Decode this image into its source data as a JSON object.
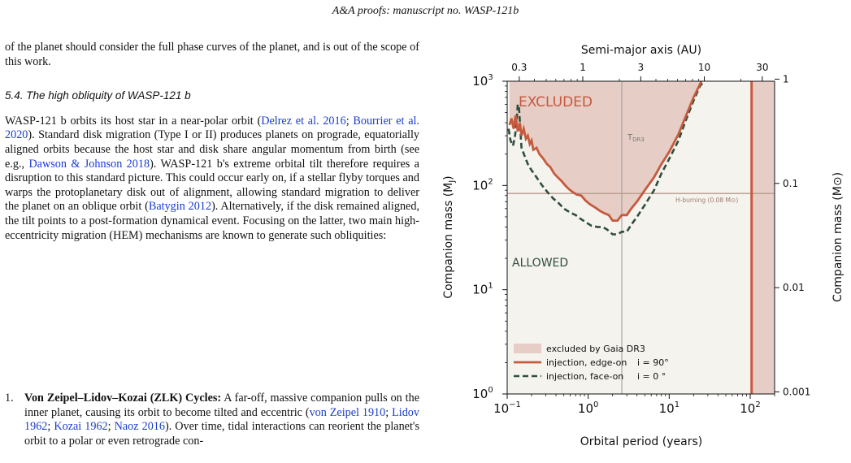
{
  "header": {
    "journal": "A&A proofs:",
    "rest": "manuscript no. WASP-121b"
  },
  "para1": "of the planet should consider the full phase curves of the planet, and is out of the scope of this work.",
  "section_title": "5.4. The high obliquity of WASP-121 b",
  "para2": {
    "t1": "WASP-121 b orbits its host star in a near-polar orbit (",
    "c1": "Delrez et al. 2016",
    "t2": "; ",
    "c2": "Bourrier et al. 2020",
    "t3": "). Standard disk migration (Type I or II) produces planets on prograde, equatorially aligned orbits because the host star and disk share angular momentum from birth (see e.g., ",
    "c3": "Dawson & Johnson 2018",
    "t4": "). WASP-121 b's extreme orbital tilt therefore requires a disruption to this standard picture. This could occur early on, if a stellar flyby torques and warps the protoplanetary disk out of alignment, allowing standard migration to deliver the planet on an oblique orbit (",
    "c4": "Batygin 2012",
    "t5": "). Alternatively, if the disk remained aligned, the tilt points to a post-formation dynamical event. Focusing on the latter, two main high-eccentricity migration (HEM) mechanisms are known to generate such obliquities:"
  },
  "list_item": {
    "num": "1.",
    "bold": "Von Zeipel–Lidov–Kozai (ZLK) Cycles:",
    "t1": " A far-off, massive companion pulls on the inner planet, causing its orbit to become tilted and eccentric (",
    "c1": "von Zeipel 1910",
    "t2": "; ",
    "c2": "Lidov 1962",
    "t3": "; ",
    "c3": "Kozai 1962",
    "t4": "; ",
    "c4": "Naoz 2016",
    "t5": "). Over time, tidal interactions can reorient the planet's orbit to a polar or even retrograde con-"
  },
  "chart_data": {
    "type": "line",
    "top_axis_label": "Semi-major axis (AU)",
    "top_ticks": [
      "0.3",
      "1",
      "3",
      "10",
      "30"
    ],
    "top_tick_values_au": [
      0.3,
      1,
      3,
      10,
      30
    ],
    "xlabel": "Orbital period (years)",
    "ylabel": "Companion mass (M",
    "ylabel_sub": "J",
    "ylabel_right": "Companion mass (M",
    "ylabel_right_sym": "⊙",
    "x_scale": "log",
    "y_scale": "log",
    "xlim": [
      0.1,
      200
    ],
    "ylim": [
      1,
      1000
    ],
    "x_ticks": [
      {
        "base": "10",
        "exp": "−1",
        "v": 0.1
      },
      {
        "base": "10",
        "exp": "0",
        "v": 1
      },
      {
        "base": "10",
        "exp": "1",
        "v": 10
      },
      {
        "base": "10",
        "exp": "2",
        "v": 100
      }
    ],
    "y_ticks": [
      {
        "base": "10",
        "exp": "0",
        "v": 1
      },
      {
        "base": "10",
        "exp": "1",
        "v": 10
      },
      {
        "base": "10",
        "exp": "2",
        "v": 100
      },
      {
        "base": "10",
        "exp": "3",
        "v": 1000
      }
    ],
    "right_ticks": [
      {
        "label": "1",
        "v_mj": 1047
      },
      {
        "label": "0.1",
        "v_mj": 104.7
      },
      {
        "label": "0.01",
        "v_mj": 10.47
      },
      {
        "label": "0.001",
        "v_mj": 1.047
      }
    ],
    "annotations": {
      "excluded": "EXCLUDED",
      "allowed": "ALLOWED",
      "tdr3": "T",
      "tdr3_sub": "DR3",
      "tdr3_period": 2.6,
      "hburn": "H-burning (0.08 M",
      "hburn_sym": "⊙",
      "hburn_close": ")",
      "hburn_mass": 83.8,
      "edge_period": 104
    },
    "legend": {
      "position": "bottom-left",
      "items": [
        {
          "label": "excluded by Gaia DR3",
          "kind": "patch"
        },
        {
          "label": "injection, edge-on",
          "inc": "i = 90°",
          "kind": "solid"
        },
        {
          "label": "injection, face-on",
          "inc": "i = 0 °",
          "kind": "dashed"
        }
      ]
    },
    "colors": {
      "excluded_fill": "#e6cdc6",
      "allowed_fill": "#f5f3ee",
      "edge_on": "#c55a3e",
      "face_on": "#2f4f3a",
      "hburn_line": "#b89a8c",
      "excluded_text": "#c55a3e",
      "allowed_text": "#2f4f3a"
    },
    "series": [
      {
        "name": "injection, edge-on  i = 90°",
        "style": "solid",
        "points": [
          [
            0.107,
            380
          ],
          [
            0.113,
            440
          ],
          [
            0.12,
            350
          ],
          [
            0.127,
            470
          ],
          [
            0.135,
            330
          ],
          [
            0.143,
            400
          ],
          [
            0.15,
            300
          ],
          [
            0.16,
            350
          ],
          [
            0.17,
            280
          ],
          [
            0.18,
            300
          ],
          [
            0.19,
            250
          ],
          [
            0.2,
            270
          ],
          [
            0.21,
            220
          ],
          [
            0.23,
            230
          ],
          [
            0.25,
            200
          ],
          [
            0.28,
            180
          ],
          [
            0.31,
            160
          ],
          [
            0.34,
            150
          ],
          [
            0.38,
            130
          ],
          [
            0.42,
            120
          ],
          [
            0.47,
            110
          ],
          [
            0.52,
            100
          ],
          [
            0.58,
            92
          ],
          [
            0.65,
            86
          ],
          [
            0.72,
            82
          ],
          [
            0.82,
            80
          ],
          [
            0.92,
            72
          ],
          [
            1.05,
            66
          ],
          [
            1.2,
            62
          ],
          [
            1.4,
            57
          ],
          [
            1.6,
            54
          ],
          [
            1.8,
            52
          ],
          [
            2.0,
            46
          ],
          [
            2.3,
            46
          ],
          [
            2.6,
            52
          ],
          [
            3.0,
            52
          ],
          [
            3.4,
            60
          ],
          [
            4.0,
            70
          ],
          [
            5.0,
            90
          ],
          [
            6.5,
            120
          ],
          [
            8,
            160
          ],
          [
            10,
            210
          ],
          [
            13,
            310
          ],
          [
            16,
            460
          ],
          [
            20,
            700
          ],
          [
            25,
            1000
          ]
        ]
      },
      {
        "name": "injection, face-on  i = 0°",
        "style": "dashed",
        "points": [
          [
            0.104,
            350
          ],
          [
            0.11,
            270
          ],
          [
            0.118,
            240
          ],
          [
            0.125,
            300
          ],
          [
            0.13,
            400
          ],
          [
            0.135,
            600
          ],
          [
            0.14,
            550
          ],
          [
            0.15,
            230
          ],
          [
            0.165,
            190
          ],
          [
            0.18,
            160
          ],
          [
            0.2,
            140
          ],
          [
            0.23,
            120
          ],
          [
            0.27,
            100
          ],
          [
            0.32,
            85
          ],
          [
            0.37,
            75
          ],
          [
            0.43,
            68
          ],
          [
            0.5,
            60
          ],
          [
            0.6,
            55
          ],
          [
            0.7,
            52
          ],
          [
            0.8,
            48
          ],
          [
            0.95,
            44
          ],
          [
            1.1,
            41
          ],
          [
            1.3,
            40
          ],
          [
            1.5,
            40
          ],
          [
            1.7,
            38
          ],
          [
            2.0,
            34
          ],
          [
            2.3,
            34
          ],
          [
            2.6,
            36
          ],
          [
            3.0,
            36
          ],
          [
            3.4,
            42
          ],
          [
            4.0,
            50
          ],
          [
            5.0,
            65
          ],
          [
            6.5,
            90
          ],
          [
            8,
            130
          ],
          [
            10,
            180
          ],
          [
            13,
            270
          ],
          [
            16,
            420
          ],
          [
            20,
            650
          ],
          [
            24,
            900
          ],
          [
            27,
            1000
          ]
        ]
      }
    ]
  }
}
